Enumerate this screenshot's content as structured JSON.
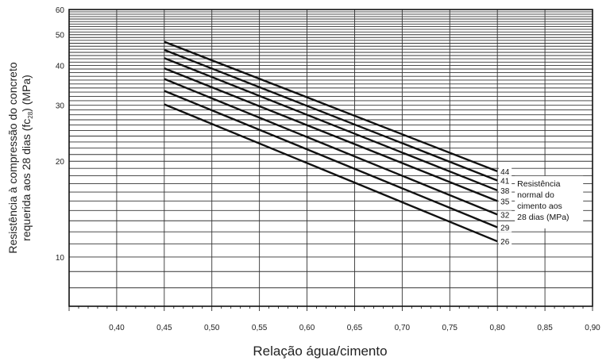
{
  "chart_data": {
    "type": "line",
    "xlabel": "Relação água/cimento",
    "ylabel_line1": "Resistência à compressão do concreto",
    "ylabel_line2_pre": "requerida aos 28 dias (fc",
    "ylabel_sub": "28",
    "ylabel_line2_post": ") (MPa)",
    "xlim": [
      0.35,
      0.9
    ],
    "ylim": [
      7,
      60
    ],
    "yscale": "log",
    "grid": true,
    "x_ticks": [
      {
        "v": 0.4,
        "label": "0,40"
      },
      {
        "v": 0.45,
        "label": "0,45"
      },
      {
        "v": 0.5,
        "label": "0,50"
      },
      {
        "v": 0.55,
        "label": "0,55"
      },
      {
        "v": 0.6,
        "label": "0,60"
      },
      {
        "v": 0.65,
        "label": "0,65"
      },
      {
        "v": 0.7,
        "label": "0,70"
      },
      {
        "v": 0.75,
        "label": "0,75"
      },
      {
        "v": 0.8,
        "label": "0,80"
      },
      {
        "v": 0.85,
        "label": "0,85"
      },
      {
        "v": 0.9,
        "label": "0,90"
      }
    ],
    "y_ticks": [
      {
        "v": 10,
        "label": "10"
      },
      {
        "v": 20,
        "label": "20"
      },
      {
        "v": 30,
        "label": "30"
      },
      {
        "v": 40,
        "label": "40"
      },
      {
        "v": 50,
        "label": "50"
      },
      {
        "v": 60,
        "label": "60"
      }
    ],
    "series": [
      {
        "name": "44",
        "x": [
          0.45,
          0.8
        ],
        "y": [
          47.5,
          18.6
        ]
      },
      {
        "name": "41",
        "x": [
          0.45,
          0.8
        ],
        "y": [
          44.8,
          17.4
        ]
      },
      {
        "name": "38",
        "x": [
          0.45,
          0.8
        ],
        "y": [
          42.2,
          16.2
        ]
      },
      {
        "name": "35",
        "x": [
          0.45,
          0.8
        ],
        "y": [
          39.2,
          15.0
        ]
      },
      {
        "name": "32",
        "x": [
          0.45,
          0.8
        ],
        "y": [
          36.3,
          13.6
        ]
      },
      {
        "name": "29",
        "x": [
          0.45,
          0.8
        ],
        "y": [
          33.3,
          12.4
        ]
      },
      {
        "name": "26",
        "x": [
          0.45,
          0.8
        ],
        "y": [
          30.2,
          11.2
        ]
      }
    ],
    "legend_text": [
      "Resistência",
      "normal do",
      "cimento aos",
      "28 dias (MPa)"
    ],
    "legend_placement": "right"
  }
}
